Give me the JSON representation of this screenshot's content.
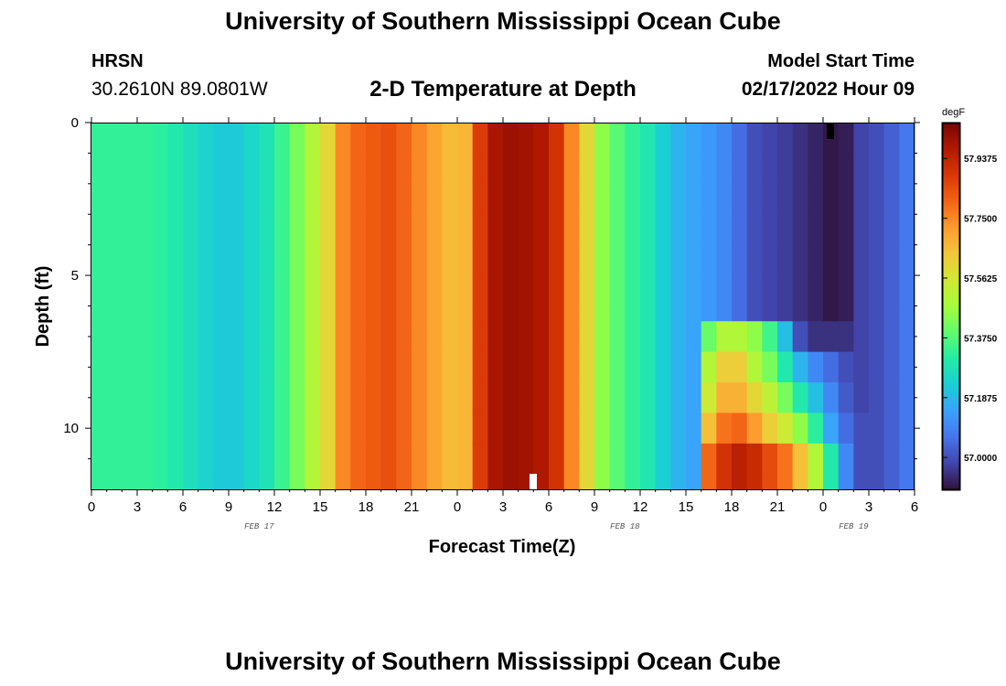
{
  "header": {
    "title": "University of Southern Mississippi Ocean Cube",
    "station": "HRSN",
    "coords": "30.2610N  89.0801W",
    "subtitle": "2-D Temperature at Depth",
    "start_label": "Model Start Time",
    "start_value": "02/17/2022 Hour 09"
  },
  "footer": {
    "title": "University of Southern Mississippi Ocean Cube"
  },
  "chart_data": {
    "type": "heatmap",
    "title": "2-D Temperature at Depth",
    "xlabel": "Forecast Time(Z)",
    "ylabel": "Depth (ft)",
    "x_tick_labels": [
      "0",
      "3",
      "6",
      "9",
      "12",
      "15",
      "18",
      "21",
      "0",
      "3",
      "6",
      "9",
      "12",
      "15",
      "18",
      "21",
      "0",
      "3",
      "6"
    ],
    "day_labels": [
      "FEB 17",
      "FEB 18",
      "FEB 19"
    ],
    "day_label_hours": [
      11,
      35,
      50
    ],
    "xlim_hours": [
      0,
      54
    ],
    "y_ticks": [
      0,
      5,
      10
    ],
    "ylim": [
      0,
      12
    ],
    "colorbar": {
      "unit": "degF",
      "tick_labels": [
        "57.9375",
        "57.7500",
        "57.5625",
        "57.3750",
        "57.1875",
        "57.0000"
      ],
      "tick_values": [
        57.9375,
        57.75,
        57.5625,
        57.375,
        57.1875,
        57.0
      ],
      "range": [
        56.9,
        58.05
      ]
    },
    "colors": [
      "#30123b",
      "#4145ab",
      "#4675ed",
      "#39a2fc",
      "#1bcfd4",
      "#24eca6",
      "#61fc6c",
      "#a4fc3b",
      "#d1e834",
      "#f3c63a",
      "#fe9b2d",
      "#f36315",
      "#d93806",
      "#b11901",
      "#7a0403"
    ],
    "depths_ft": [
      0,
      1,
      2,
      3,
      4,
      5,
      6,
      6.5,
      7.5,
      8.5,
      9.5,
      10.5,
      11.5,
      12
    ],
    "upper_temperature_by_hour": [
      57.33,
      57.33,
      57.33,
      57.33,
      57.32,
      57.3,
      57.27,
      57.24,
      57.22,
      57.22,
      57.25,
      57.28,
      57.34,
      57.42,
      57.5,
      57.6,
      57.75,
      57.8,
      57.82,
      57.84,
      57.8,
      57.75,
      57.7,
      57.66,
      57.67,
      57.88,
      57.98,
      58.0,
      57.99,
      57.97,
      57.9,
      57.75,
      57.6,
      57.45,
      57.38,
      57.33,
      57.29,
      57.23,
      57.18,
      57.15,
      57.13,
      57.1,
      57.05,
      57.0,
      56.98,
      56.97,
      56.95,
      56.93,
      56.91,
      56.92,
      56.98,
      57.0,
      57.03,
      57.07
    ],
    "lower_layer_temperature_by_hour": {
      "hours": [
        40,
        41,
        42,
        43,
        44,
        45,
        46,
        47,
        48,
        49,
        50,
        51,
        52,
        53
      ],
      "depth_7_to_8_ft": [
        57.4,
        57.5,
        57.5,
        57.45,
        57.35,
        57.2,
        57.0,
        56.95,
        56.95,
        56.95,
        56.98,
        57.0,
        57.03,
        57.07
      ],
      "depth_8_to_9_ft": [
        57.5,
        57.62,
        57.62,
        57.5,
        57.42,
        57.3,
        57.18,
        57.1,
        57.05,
        57.0,
        56.98,
        57.0,
        57.03,
        57.07
      ],
      "depth_9_to_10_ft": [
        57.55,
        57.68,
        57.68,
        57.6,
        57.52,
        57.42,
        57.3,
        57.2,
        57.1,
        57.02,
        56.98,
        57.0,
        57.03,
        57.07
      ],
      "depth_10_to_11_ft": [
        57.65,
        57.78,
        57.8,
        57.72,
        57.62,
        57.55,
        57.45,
        57.32,
        57.15,
        57.05,
        57.0,
        57.0,
        57.03,
        57.07
      ],
      "depth_11_to_12_ft": [
        57.8,
        57.9,
        57.95,
        57.92,
        57.85,
        57.78,
        57.65,
        57.5,
        57.3,
        57.1,
        57.0,
        57.0,
        57.03,
        57.07
      ]
    }
  }
}
